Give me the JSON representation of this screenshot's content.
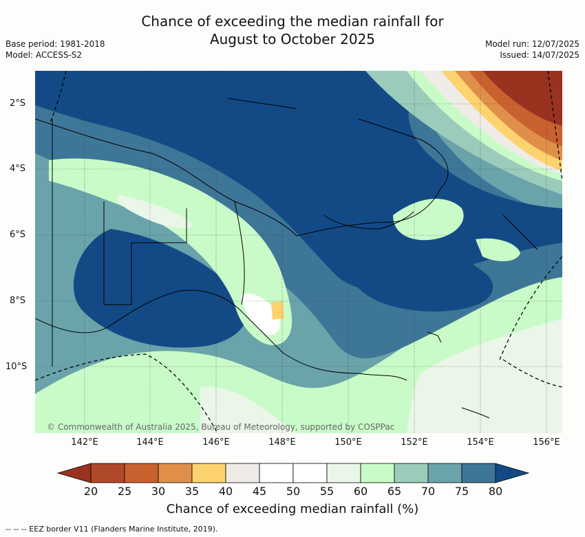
{
  "title": {
    "line1": "Chance of exceeding the median rainfall for",
    "line2": "August to October 2025"
  },
  "meta_left": {
    "base_period": "Base period: 1981-2018",
    "model": "Model: ACCESS-S2"
  },
  "meta_right": {
    "model_run": "Model run: 12/07/2025",
    "issued": "Issued: 14/07/2025"
  },
  "map": {
    "lat_labels": [
      "2°S",
      "4°S",
      "6°S",
      "8°S",
      "10°S"
    ],
    "lon_labels": [
      "142°E",
      "144°E",
      "146°E",
      "148°E",
      "150°E",
      "152°E",
      "154°E",
      "156°E"
    ],
    "copyright": "© Commonwealth of Australia 2025, Bureau of Meteorology, supported by COSPPac"
  },
  "colorbar": {
    "ticks": [
      "20",
      "25",
      "30",
      "35",
      "40",
      "45",
      "50",
      "55",
      "60",
      "65",
      "70",
      "75",
      "80"
    ],
    "colors": [
      "#9a3220",
      "#b0492a",
      "#c9612f",
      "#e08f4a",
      "#fdd36f",
      "#efece7",
      "#ffffff",
      "#ffffff",
      "#eaf6e8",
      "#c9fbc9",
      "#9bccbb",
      "#6aa4aa",
      "#3e7697",
      "#134a86"
    ],
    "title": "Chance of exceeding median rainfall (%)"
  },
  "footer": "--  --  -- EEZ border V11 (Flanders Marine Institute, 2019)."
}
